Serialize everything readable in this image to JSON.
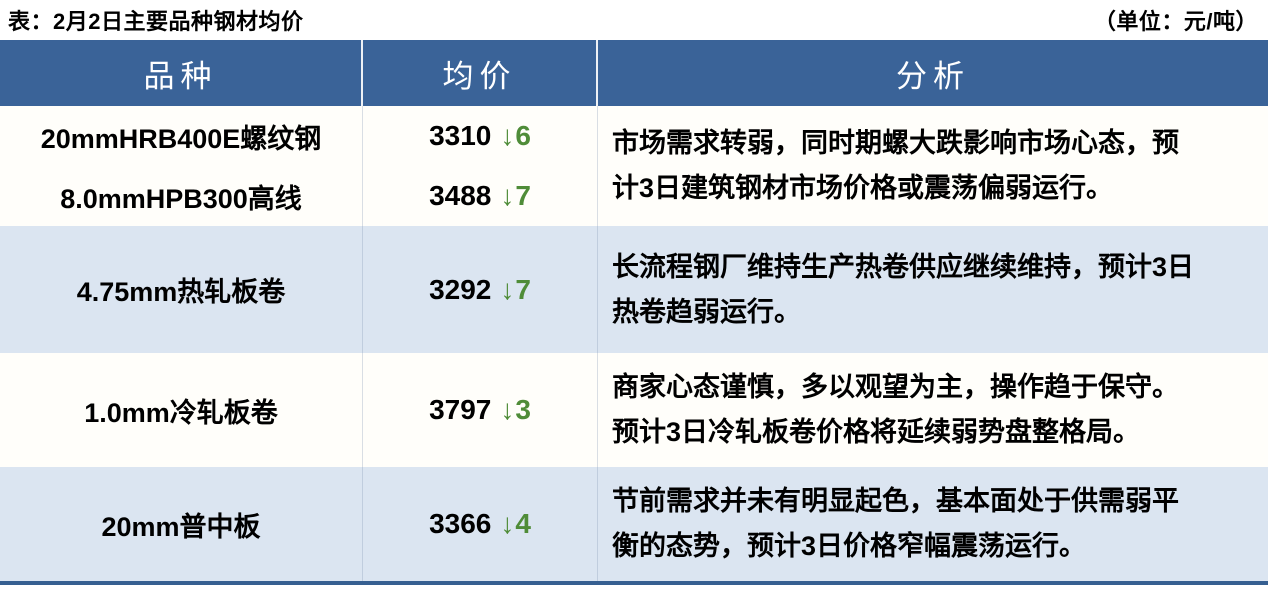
{
  "caption": {
    "title": "表：2月2日主要品种钢材均价",
    "unit": "（单位：元/吨）"
  },
  "colors": {
    "header_bg": "#3a6398",
    "header_text": "#ffffff",
    "row_bg": "#fffefa",
    "row_alt_bg": "#dbe5f1",
    "down_green": "#4f8c38",
    "border_bottom": "#365f91",
    "text": "#000000"
  },
  "icons": {
    "down_arrow": "↓"
  },
  "table": {
    "columns": [
      {
        "label": "品种"
      },
      {
        "label": "均价"
      },
      {
        "label": "分析"
      }
    ],
    "rows": [
      {
        "products": [
          {
            "name": "20mmHRB400E螺纹钢",
            "price": "3310",
            "change_dir": "down",
            "change": "6"
          },
          {
            "name": "8.0mmHPB300高线",
            "price": "3488",
            "change_dir": "down",
            "change": "7"
          }
        ],
        "analysis_lines": [
          "市场需求转弱，同时期螺大跌影响市场心态，预",
          "计3日建筑钢材市场价格或震荡偏弱运行。"
        ],
        "analysis": "市场需求转弱，同时期螺大跌影响市场心态，预计3日建筑钢材市场价格或震荡偏弱运行。"
      },
      {
        "products": [
          {
            "name": "4.75mm热轧板卷",
            "price": "3292",
            "change_dir": "down",
            "change": "7"
          }
        ],
        "analysis_lines": [
          "长流程钢厂维持生产热卷供应继续维持，预计3日",
          "热卷趋弱运行。"
        ],
        "analysis": "长流程钢厂维持生产热卷供应继续维持，预计3日热卷趋弱运行。"
      },
      {
        "products": [
          {
            "name": "1.0mm冷轧板卷",
            "price": "3797",
            "change_dir": "down",
            "change": "3"
          }
        ],
        "analysis_lines": [
          "商家心态谨慎，多以观望为主，操作趋于保守。",
          "预计3日冷轧板卷价格将延续弱势盘整格局。"
        ],
        "analysis": "商家心态谨慎，多以观望为主，操作趋于保守。预计3日冷轧板卷价格将延续弱势盘整格局。"
      },
      {
        "products": [
          {
            "name": "20mm普中板",
            "price": "3366",
            "change_dir": "down",
            "change": "4"
          }
        ],
        "analysis_lines": [
          "节前需求并未有明显起色，基本面处于供需弱平",
          "衡的态势，预计3日价格窄幅震荡运行。"
        ],
        "analysis": "节前需求并未有明显起色，基本面处于供需弱平衡的态势，预计3日价格窄幅震荡运行。"
      }
    ]
  }
}
